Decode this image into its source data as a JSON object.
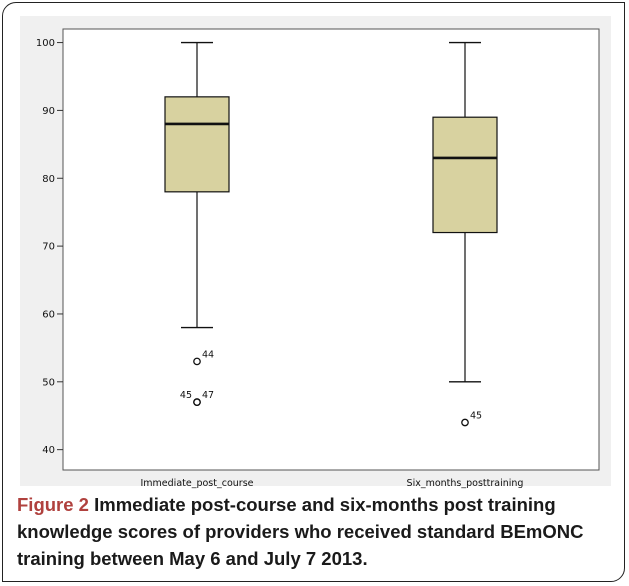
{
  "caption": {
    "label": "Figure 2",
    "text": "Immediate post-course and six-months post training knowledge scores of providers who received standard BEmONC training between May 6 and July 7 2013."
  },
  "chart_data": {
    "type": "box",
    "title": "",
    "xlabel": "",
    "ylabel": "",
    "ylim": [
      37,
      102
    ],
    "yticks": [
      40,
      50,
      60,
      70,
      80,
      90,
      100
    ],
    "grid": false,
    "categories": [
      "Immediate_post_course",
      "Six_months_posttraining"
    ],
    "boxes": [
      {
        "category": "Immediate_post_course",
        "whisker_low": 58,
        "q1": 78,
        "median": 88,
        "q3": 92,
        "whisker_high": 100,
        "outliers": [
          {
            "value": 53,
            "case": "44"
          },
          {
            "value": 47,
            "case": "47"
          },
          {
            "value": 47,
            "case": "45"
          }
        ]
      },
      {
        "category": "Six_months_posttraining",
        "whisker_low": 50,
        "q1": 72,
        "median": 83,
        "q3": 89,
        "whisker_high": 100,
        "outliers": [
          {
            "value": 44,
            "case": "45"
          }
        ]
      }
    ],
    "colors": {
      "box_fill": "#d8d2a0",
      "line": "#111111",
      "plot_bg": "#ffffff",
      "panel_bg": "#f0f0f0"
    }
  }
}
